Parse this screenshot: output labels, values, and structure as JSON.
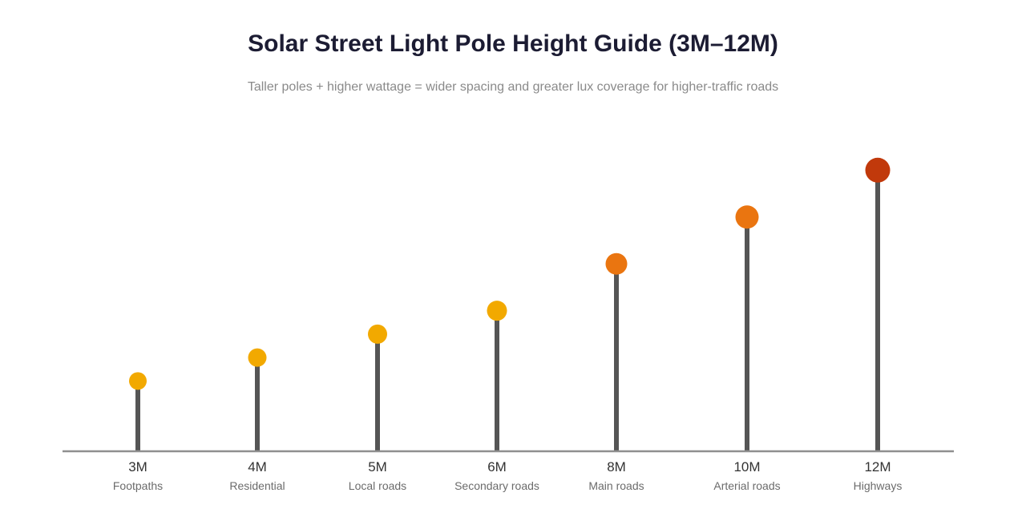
{
  "chart_data": {
    "type": "lollipop",
    "title": "Solar Street Light Pole Height Guide (3M–12M)",
    "subtitle": "Taller poles + higher wattage = wider spacing and greater lux coverage for higher-traffic roads",
    "categories": [
      "3M",
      "4M",
      "5M",
      "6M",
      "8M",
      "10M",
      "12M"
    ],
    "road_types": [
      "Footpaths",
      "Residential",
      "Local roads",
      "Secondary roads",
      "Main roads",
      "Arterial roads",
      "Highways"
    ],
    "values": [
      3,
      4,
      5,
      6,
      8,
      10,
      12
    ],
    "ylim": [
      0,
      15.5
    ],
    "grid": false,
    "colors": {
      "low": "#f2a900",
      "mid": "#ea7510",
      "high": "#c1390b",
      "pole": "#555555",
      "baseline": "#8f8f8f"
    },
    "point_colors": [
      "#f2a900",
      "#f2a900",
      "#f2a900",
      "#f2a900",
      "#ea7510",
      "#ea7510",
      "#c1390b"
    ]
  }
}
